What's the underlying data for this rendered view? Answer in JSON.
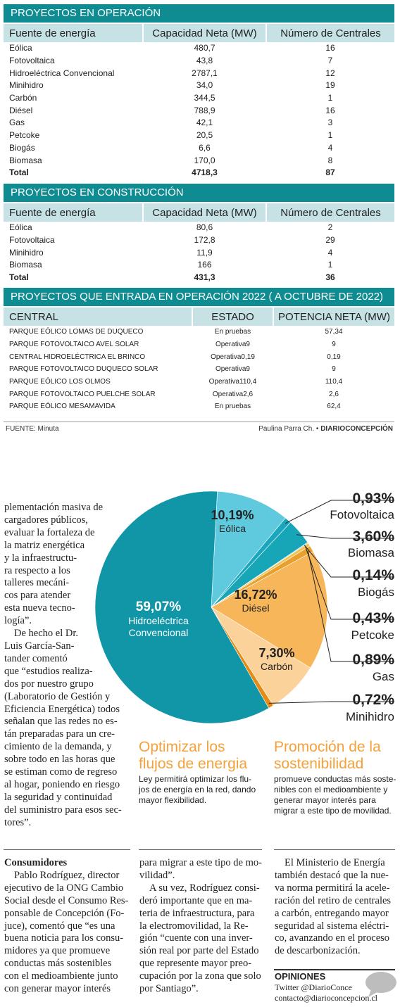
{
  "operacion": {
    "title": "PROYECTOS EN OPERACIÓN",
    "headers": [
      "Fuente de energía",
      "Capacidad Neta (MW)",
      "Número de Centrales"
    ],
    "rows": [
      [
        "Eólica",
        "480,7",
        "16"
      ],
      [
        "Fotovoltaica",
        "43,8",
        "7"
      ],
      [
        "Hidroeléctrica Convencional",
        "2787,1",
        "12"
      ],
      [
        "Minihidro",
        "34,0",
        "19"
      ],
      [
        "Carbón",
        "344,5",
        "1"
      ],
      [
        "Diésel",
        "788,9",
        "16"
      ],
      [
        "Gas",
        "42,1",
        "3"
      ],
      [
        "Petcoke",
        "20,5",
        "1"
      ],
      [
        "Biogás",
        "6,6",
        "4"
      ],
      [
        "Biomasa",
        "170,0",
        "8"
      ]
    ],
    "total": [
      "Total",
      "4718,3",
      "87"
    ]
  },
  "construccion": {
    "title": "PROYECTOS EN CONSTRUCCIÓN",
    "headers": [
      "Fuente de energía",
      "Capacidad Neta (MW)",
      "Número de Centrales"
    ],
    "rows": [
      [
        "Eólica",
        "80,6",
        "2"
      ],
      [
        "Fotovoltaica",
        "172,8",
        "29"
      ],
      [
        "Minihidro",
        "11,9",
        "4"
      ],
      [
        "Biomasa",
        "166",
        "1"
      ]
    ],
    "total": [
      "Total",
      "431,3",
      "36"
    ]
  },
  "entrada": {
    "title": "PROYECTOS QUE  ENTRADA EN OPERACIÓN 2022  ( A OCTUBRE DE 2022)",
    "headers": [
      "CENTRAL",
      "ESTADO",
      "POTENCIA NETA (MW)"
    ],
    "rows": [
      [
        "PARQUE EÓLICO LOMAS DE DUQUECO",
        "En pruebas",
        "57,34"
      ],
      [
        "PARQUE FOTOVOLTAICO AVEL SOLAR",
        "Operativa9",
        "9"
      ],
      [
        "CENTRAL HIDROELÉCTRICA EL BRINCO",
        "Operativa0,19",
        "0,19"
      ],
      [
        "PARQUE FOTOVOLTAICO DUQUECO SOLAR",
        "Operativa9",
        "9"
      ],
      [
        "PARQUE EÓLICO LOS OLMOS",
        "Operativa110,4",
        "110,4"
      ],
      [
        "PARQUE FOTOVOLTAICO PUELCHE SOLAR",
        "Operativa2,6",
        "2,6"
      ],
      [
        "PARQUE EÓLICO MESAMAVIDA",
        "En pruebas",
        "62,4"
      ]
    ]
  },
  "footer": {
    "fuente": "FUENTE: Minuta",
    "author": "Paulina Parra Ch.",
    "bullet": "•",
    "brand": "DIARIOCONCEPCIÓN"
  },
  "chart_data": {
    "type": "pie",
    "slices": [
      {
        "label": "Hidroeléctrica Convencional",
        "value": 59.07,
        "text": "59,07%",
        "color": "#1196a8"
      },
      {
        "label": "Eólica",
        "value": 10.19,
        "text": "10,19%",
        "color": "#5fc9de"
      },
      {
        "label": "Fotovoltaica",
        "value": 0.93,
        "text": "0,93%",
        "color": "#1aa6bd"
      },
      {
        "label": "Biomasa",
        "value": 3.6,
        "text": "3,60%",
        "color": "#17a5b8"
      },
      {
        "label": "Biogás",
        "value": 0.14,
        "text": "0,14%",
        "color": "#8fd6e4"
      },
      {
        "label": "Petcoke",
        "value": 0.43,
        "text": "0,43%",
        "color": "#f6c04c"
      },
      {
        "label": "Gas",
        "value": 0.89,
        "text": "0,89%",
        "color": "#e9a02a"
      },
      {
        "label": "Diésel",
        "value": 16.72,
        "text": "16,72%",
        "color": "#f8b65a"
      },
      {
        "label": "Carbón",
        "value": 7.3,
        "text": "7,30%",
        "color": "#fbd29a"
      },
      {
        "label": "Minihidro",
        "value": 0.72,
        "text": "0,72%",
        "color": "#e58a12"
      }
    ],
    "callouts": [
      {
        "pct": "0,93%",
        "label": "Fotovoltaica"
      },
      {
        "pct": "3,60%",
        "label": "Biomasa"
      },
      {
        "pct": "0,14%",
        "label": "Biogás"
      },
      {
        "pct": "0,43%",
        "label": "Petcoke"
      },
      {
        "pct": "0,89%",
        "label": "Gas"
      },
      {
        "pct": "0,72%",
        "label": "Minihidro"
      }
    ]
  },
  "article": {
    "col1_lines": [
      "plementación masiva de",
      "cargadores públicos,",
      "evaluar la fortaleza de",
      "la matriz energética",
      "y la infraestructu-",
      "ra respecto a los",
      "talleres mecáni-",
      "cos para atender",
      "esta nueva tecno-",
      "logía”."
    ],
    "col1_p2_lines": [
      "De hecho el Dr.",
      "Luis García-San-",
      "tander   comentó",
      "que “estudios realiza-",
      "dos por nuestro grupo",
      "(Laboratorio de Gestión y",
      "Eficiencia Energética) todos",
      "señalan que las redes no es-",
      "tán preparadas para un cre-",
      "cimiento de la demanda, y",
      "sobre todo en las horas que",
      "se estiman como de regreso",
      "al hogar, poniendo en riesgo",
      "la seguridad y continuidad",
      "del suministro para esos sec-",
      "tores”."
    ],
    "consumidores_head": "Consumidores",
    "consumidores_lines": [
      "Pablo Rodríguez, director",
      "ejecutivo de la ONG Cambio",
      "Social desde el Consumo Res-",
      "ponsable de Concepción (Fo-",
      "juce),  comentó  que  “es una",
      "buena noticia para los consu-",
      "midores ya que promueve",
      "conductas más sostenibles",
      "con el medioambiente junto",
      "con generar mayor interés"
    ],
    "col2_lines": [
      "para migrar a este tipo de mo-",
      "vilidad”."
    ],
    "col2_p2_lines": [
      "A su vez, Rodríguez consi-",
      "deró importante que en ma-",
      "teria de infraestructura, para",
      "la electromovilidad, la Re-",
      "gión “cuente con una inver-",
      "sión real por parte del Estado",
      "que represente mayor preo-",
      "cupación por la zona que solo",
      "por Santiago”."
    ],
    "col3_lines": [
      "El Ministerio de Energía",
      "también destacó que la nue-",
      "va norma permitirá la acele-",
      "ración del retiro de centrales",
      "a carbón, entregando mayor",
      "seguridad al sistema eléctri-",
      "co, avanzando en el proceso",
      "de descarbonización."
    ]
  },
  "box1": {
    "title_lines": [
      "Optimizar los",
      "flujos de energia"
    ],
    "text_lines": [
      "Ley permitirá optimizar los flu-",
      "jos de energía en la red, dando",
      "mayor flexibilidad."
    ]
  },
  "box2": {
    "title_lines": [
      "Promoción de la",
      "sostenibilidad"
    ],
    "text_lines": [
      "promueve conductas más soste-",
      "nibles con el medioambiente y",
      "generar mayor interés para",
      "migrar a este tipo de movilidad."
    ]
  },
  "opiniones": {
    "title": "OPINIONES",
    "twitter": "Twitter @DiarioConce",
    "email": "contacto@diarioconcepcion.cl"
  }
}
